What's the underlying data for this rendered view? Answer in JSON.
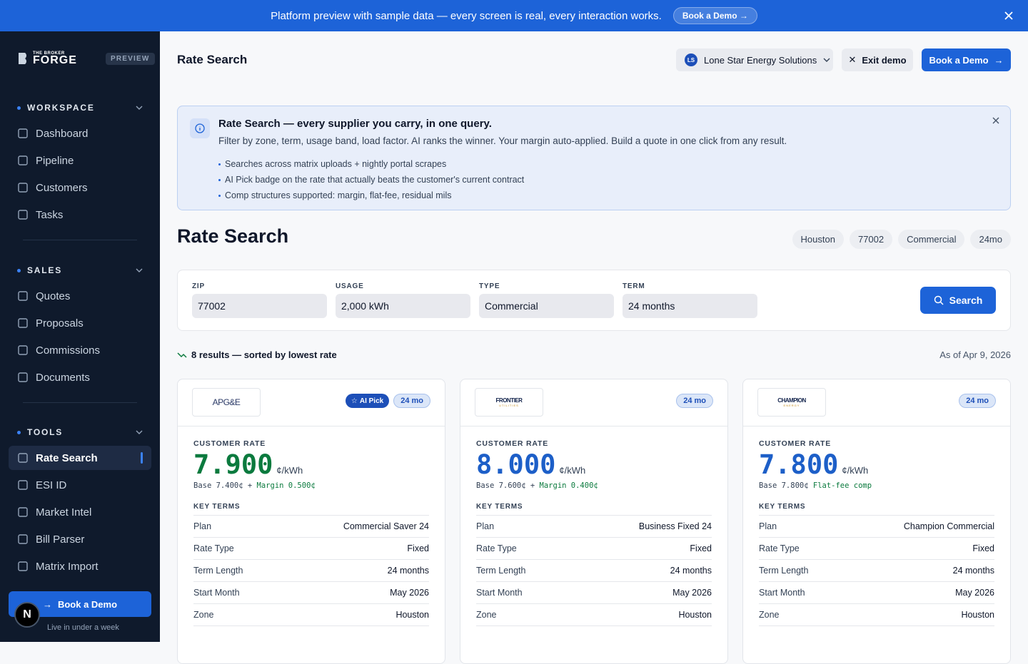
{
  "banner": {
    "text": "Platform preview with sample data — every screen is real, every interaction works.",
    "cta": "Book a Demo"
  },
  "sidebar": {
    "brand_top": "THE BROKER",
    "brand": "FORGE",
    "badge": "PREVIEW",
    "sections": [
      {
        "title": "WORKSPACE",
        "items": [
          "Dashboard",
          "Pipeline",
          "Customers",
          "Tasks"
        ]
      },
      {
        "title": "SALES",
        "items": [
          "Quotes",
          "Proposals",
          "Commissions",
          "Documents"
        ]
      },
      {
        "title": "TOOLS",
        "items": [
          "Rate Search",
          "ESI ID",
          "Market Intel",
          "Bill Parser",
          "Matrix Import"
        ]
      }
    ],
    "active": "Rate Search",
    "cta": "Book a Demo",
    "cta_note": "Live in under a week",
    "avatar": "N"
  },
  "header": {
    "title": "Rate Search",
    "account_initials": "LS",
    "account": "Lone Star Energy Solutions",
    "exit": "Exit demo",
    "cta": "Book a Demo"
  },
  "info": {
    "title": "Rate Search — every supplier you carry, in one query.",
    "text": "Filter by zone, term, usage band, load factor. AI ranks the winner. Your margin auto-applied. Build a quote in one click from any result.",
    "bullets": [
      "Searches across matrix uploads + nightly portal scrapes",
      "AI Pick badge on the rate that actually beats the customer's current contract",
      "Comp structures supported: margin, flat-fee, residual mils"
    ]
  },
  "page": {
    "title": "Rate Search",
    "chips": [
      "Houston",
      "77002",
      "Commercial",
      "24mo"
    ]
  },
  "form": {
    "fields": [
      {
        "label": "ZIP",
        "value": "77002"
      },
      {
        "label": "USAGE",
        "value": "2,000 kWh"
      },
      {
        "label": "TYPE",
        "value": "Commercial"
      },
      {
        "label": "TERM",
        "value": "24 months"
      }
    ],
    "button": "Search"
  },
  "results": {
    "summary": "8 results — sorted by lowest rate",
    "as_of": "As of Apr 9, 2026"
  },
  "cards": [
    {
      "logo": "APG&E",
      "badge": "AI Pick",
      "term": "24 mo",
      "rate_label": "CUSTOMER RATE",
      "rate": "7.900",
      "unit": "¢/kWh",
      "base": "Base 7.400¢",
      "plus": "+",
      "comp": "Margin 0.500¢",
      "key_terms": "KEY TERMS",
      "terms": [
        {
          "label": "Plan",
          "value": "Commercial Saver 24"
        },
        {
          "label": "Rate Type",
          "value": "Fixed"
        },
        {
          "label": "Term Length",
          "value": "24 months"
        },
        {
          "label": "Start Month",
          "value": "May 2026"
        },
        {
          "label": "Zone",
          "value": "Houston"
        }
      ]
    },
    {
      "logo": "FRONTIER",
      "logo_sub": "UTILITIES",
      "term": "24 mo",
      "rate_label": "CUSTOMER RATE",
      "rate": "8.000",
      "unit": "¢/kWh",
      "base": "Base 7.600¢",
      "plus": "+",
      "comp": "Margin 0.400¢",
      "key_terms": "KEY TERMS",
      "terms": [
        {
          "label": "Plan",
          "value": "Business Fixed 24"
        },
        {
          "label": "Rate Type",
          "value": "Fixed"
        },
        {
          "label": "Term Length",
          "value": "24 months"
        },
        {
          "label": "Start Month",
          "value": "May 2026"
        },
        {
          "label": "Zone",
          "value": "Houston"
        }
      ]
    },
    {
      "logo": "CHAMPION",
      "logo_sub": "ENERGY",
      "term": "24 mo",
      "rate_label": "CUSTOMER RATE",
      "rate": "7.800",
      "unit": "¢/kWh",
      "base": "Base 7.800¢",
      "comp": "Flat-fee comp",
      "key_terms": "KEY TERMS",
      "terms": [
        {
          "label": "Plan",
          "value": "Champion Commercial"
        },
        {
          "label": "Rate Type",
          "value": "Fixed"
        },
        {
          "label": "Term Length",
          "value": "24 months"
        },
        {
          "label": "Start Month",
          "value": "May 2026"
        },
        {
          "label": "Zone",
          "value": "Houston"
        }
      ]
    }
  ]
}
